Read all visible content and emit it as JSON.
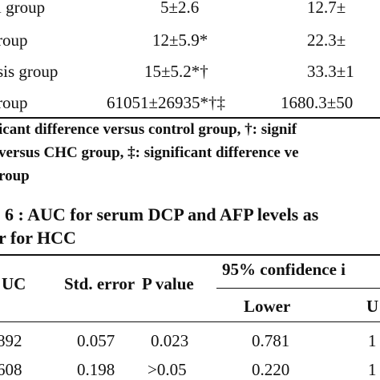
{
  "table5": {
    "rows": [
      {
        "group": "l group",
        "dcp": "5±2.6",
        "afp": "12.7±"
      },
      {
        "group": "roup",
        "dcp": "12±5.9*",
        "afp": "22.3±"
      },
      {
        "group": "sis group",
        "dcp": "15±5.2*†",
        "afp": "33.3±1"
      },
      {
        "group": "roup",
        "dcp": "61051±26935*†‡",
        "afp": "1680.3±50"
      }
    ],
    "footnote_lines": [
      "icant difference versus control group, †: signif",
      "versus CHC group, ‡: significant difference ve",
      "roup"
    ]
  },
  "table6": {
    "caption_lines": [
      "6 : AUC for serum DCP and AFP levels as",
      "r for HCC"
    ],
    "headers": {
      "auc": "UC",
      "std_error": "Std. error",
      "p_value": "P value",
      "ci": "95% confidence i",
      "lower": "Lower",
      "upper": "U"
    },
    "rows": [
      {
        "auc": "892",
        "std_error": "0.057",
        "p_value": "0.023",
        "lower": "0.781",
        "upper": "1"
      },
      {
        "auc": "608",
        "std_error": "0.198",
        "p_value": ">0.05",
        "lower": "0.220",
        "upper": "1"
      }
    ]
  }
}
